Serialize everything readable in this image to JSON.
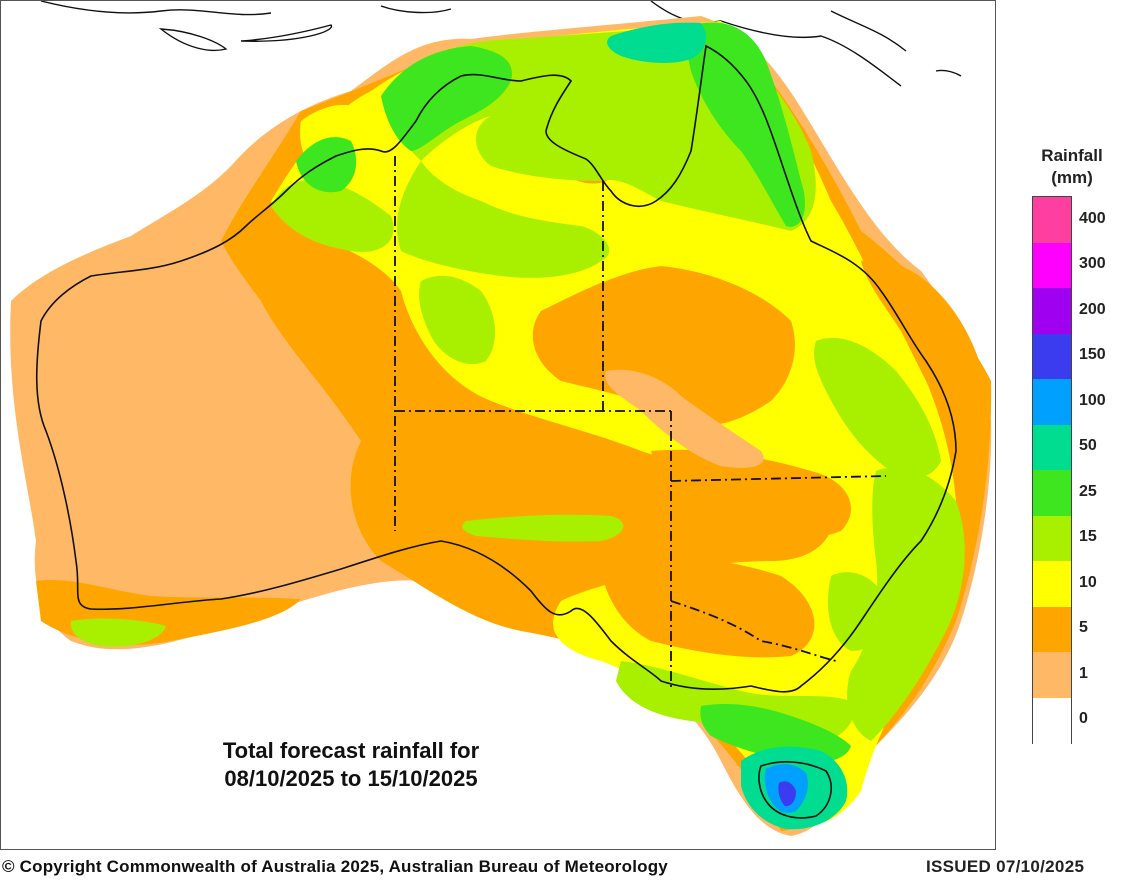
{
  "map": {
    "caption_line1": "Total forecast rainfall for",
    "caption_line2": "08/10/2025 to 15/10/2025"
  },
  "legend": {
    "title_line1": "Rainfall",
    "title_line2": "(mm)",
    "bins": [
      {
        "label": "400",
        "color": "#ff3fa0"
      },
      {
        "label": "300",
        "color": "#ff00ff"
      },
      {
        "label": "200",
        "color": "#a000f0"
      },
      {
        "label": "150",
        "color": "#3b3bf0"
      },
      {
        "label": "100",
        "color": "#00a0ff"
      },
      {
        "label": "50",
        "color": "#00dc90"
      },
      {
        "label": "25",
        "color": "#3de61e"
      },
      {
        "label": "15",
        "color": "#a8f000"
      },
      {
        "label": "10",
        "color": "#ffff00"
      },
      {
        "label": "5",
        "color": "#ffa500"
      },
      {
        "label": "1",
        "color": "#ffb966"
      },
      {
        "label": "0",
        "color": "#ffffff"
      }
    ]
  },
  "footer": {
    "copyright": "© Copyright Commonwealth of Australia 2025, Australian Bureau of Meteorology",
    "issued": "ISSUED 07/10/2025"
  }
}
